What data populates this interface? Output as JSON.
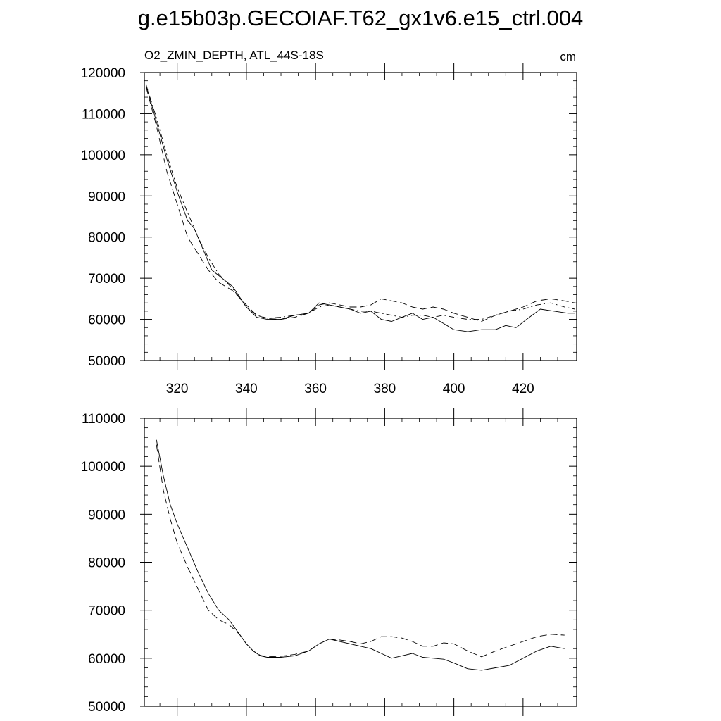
{
  "figure_title": "g.e15b03p.GECOIAF.T62_gx1v6.e15_ctrl.004",
  "chart_data": [
    {
      "type": "line",
      "title": "g.e15b03p.GECOIAF.T62_gx1v6.e15_ctrl.004",
      "left_label": "O2_ZMIN_DEPTH, ATL_44S-18S",
      "right_label": "cm",
      "xlim": [
        310.5,
        435.5
      ],
      "ylim": [
        50000,
        120000
      ],
      "x_ticks": [
        320,
        340,
        360,
        380,
        400,
        420
      ],
      "x_tick_labels": [
        "320",
        "340",
        "360",
        "380",
        "400",
        "420"
      ],
      "y_ticks": [
        50000,
        60000,
        70000,
        80000,
        90000,
        100000,
        110000,
        120000
      ],
      "y_tick_labels": [
        "50000",
        "60000",
        "70000",
        "80000",
        "90000",
        "100000",
        "110000",
        "120000"
      ],
      "series": [
        {
          "name": "solid",
          "style": "solid",
          "x": [
            311,
            314,
            317,
            320,
            323,
            325,
            327,
            330,
            333,
            336,
            340,
            343,
            346,
            350,
            354,
            358,
            361,
            364,
            367,
            370,
            373,
            376,
            379,
            382,
            385,
            388,
            391,
            394,
            397,
            400,
            404,
            408,
            412,
            415,
            418,
            421,
            425,
            429,
            433,
            435
          ],
          "y": [
            117000,
            108000,
            99000,
            91000,
            84000,
            82000,
            78000,
            72000,
            70000,
            68000,
            63000,
            60500,
            60000,
            60000,
            61000,
            61500,
            64000,
            63500,
            63000,
            62500,
            61500,
            62000,
            60000,
            59500,
            60500,
            61500,
            60000,
            60500,
            59000,
            57500,
            57000,
            57500,
            57500,
            58500,
            58000,
            60000,
            62500,
            62000,
            61500,
            61500
          ]
        },
        {
          "name": "dashed",
          "style": "dashed",
          "x": [
            311,
            314,
            317,
            320,
            323,
            326,
            329,
            332,
            336,
            340,
            343,
            346,
            350,
            354,
            358,
            361,
            364,
            367,
            370,
            373,
            376,
            379,
            382,
            385,
            388,
            391,
            394,
            397,
            400,
            404,
            408,
            412,
            416,
            420,
            424,
            428,
            432,
            435
          ],
          "y": [
            116500,
            107000,
            96000,
            88000,
            80000,
            76000,
            72000,
            69000,
            67000,
            63500,
            61000,
            60200,
            60000,
            60500,
            61500,
            63500,
            64000,
            63500,
            63000,
            63000,
            63500,
            65000,
            64500,
            64000,
            63000,
            62500,
            63000,
            62500,
            61500,
            60500,
            59500,
            61000,
            62000,
            63000,
            64500,
            65000,
            64500,
            64000
          ]
        },
        {
          "name": "dash-dot",
          "style": "dashdot",
          "x": [
            311,
            314,
            317,
            320,
            323,
            326,
            329,
            332,
            336,
            340,
            343,
            346,
            350,
            354,
            358,
            361,
            364,
            367,
            370,
            373,
            376,
            379,
            382,
            385,
            388,
            391,
            394,
            397,
            400,
            404,
            408,
            412,
            416,
            420,
            424,
            428,
            432,
            435
          ],
          "y": [
            117000,
            109000,
            100000,
            92000,
            86000,
            80000,
            75000,
            71000,
            67500,
            63000,
            61000,
            60300,
            60500,
            61000,
            61500,
            63000,
            63500,
            63000,
            62500,
            62000,
            62000,
            61500,
            61000,
            60500,
            61000,
            61000,
            60500,
            61000,
            60500,
            60000,
            60000,
            61000,
            62000,
            62500,
            63500,
            64000,
            63000,
            62500
          ]
        }
      ]
    },
    {
      "type": "line",
      "xlim": [
        310.5,
        435.5
      ],
      "ylim": [
        50000,
        110000
      ],
      "x_ticks": [
        320,
        340,
        360,
        380,
        400,
        420
      ],
      "y_ticks": [
        50000,
        60000,
        70000,
        80000,
        90000,
        100000,
        110000
      ],
      "y_tick_labels": [
        "50000",
        "60000",
        "70000",
        "80000",
        "90000",
        "100000",
        "110000"
      ],
      "series": [
        {
          "name": "solid",
          "style": "solid",
          "x": [
            314,
            316,
            318,
            320,
            323,
            326,
            329,
            332,
            335,
            338,
            340,
            342,
            344,
            346,
            350,
            354,
            358,
            361,
            364,
            367,
            370,
            373,
            376,
            379,
            382,
            385,
            388,
            391,
            394,
            397,
            400,
            404,
            408,
            412,
            416,
            420,
            424,
            428,
            432
          ],
          "y": [
            105500,
            98000,
            92000,
            88000,
            83000,
            78000,
            73500,
            70000,
            68000,
            65000,
            63000,
            61500,
            60500,
            60200,
            60200,
            60500,
            61500,
            63000,
            64000,
            63500,
            63000,
            62500,
            62000,
            61000,
            60000,
            60500,
            61000,
            60200,
            60000,
            59800,
            59000,
            57800,
            57500,
            58000,
            58500,
            60000,
            61500,
            62500,
            62000
          ]
        },
        {
          "name": "dashed",
          "style": "dashed",
          "x": [
            314,
            316,
            318,
            320,
            323,
            326,
            329,
            332,
            335,
            338,
            340,
            342,
            344,
            346,
            350,
            354,
            358,
            361,
            364,
            367,
            370,
            373,
            376,
            379,
            382,
            385,
            388,
            391,
            394,
            397,
            400,
            404,
            408,
            412,
            416,
            420,
            424,
            428,
            432
          ],
          "y": [
            104500,
            95000,
            89000,
            84000,
            79000,
            74500,
            70000,
            68000,
            67000,
            65000,
            63000,
            61500,
            60600,
            60300,
            60400,
            60800,
            61500,
            63000,
            64000,
            63800,
            63500,
            63000,
            63500,
            64500,
            64500,
            64200,
            63500,
            62500,
            62500,
            63200,
            63000,
            61500,
            60300,
            61500,
            62500,
            63500,
            64500,
            65000,
            64800
          ]
        }
      ]
    }
  ]
}
